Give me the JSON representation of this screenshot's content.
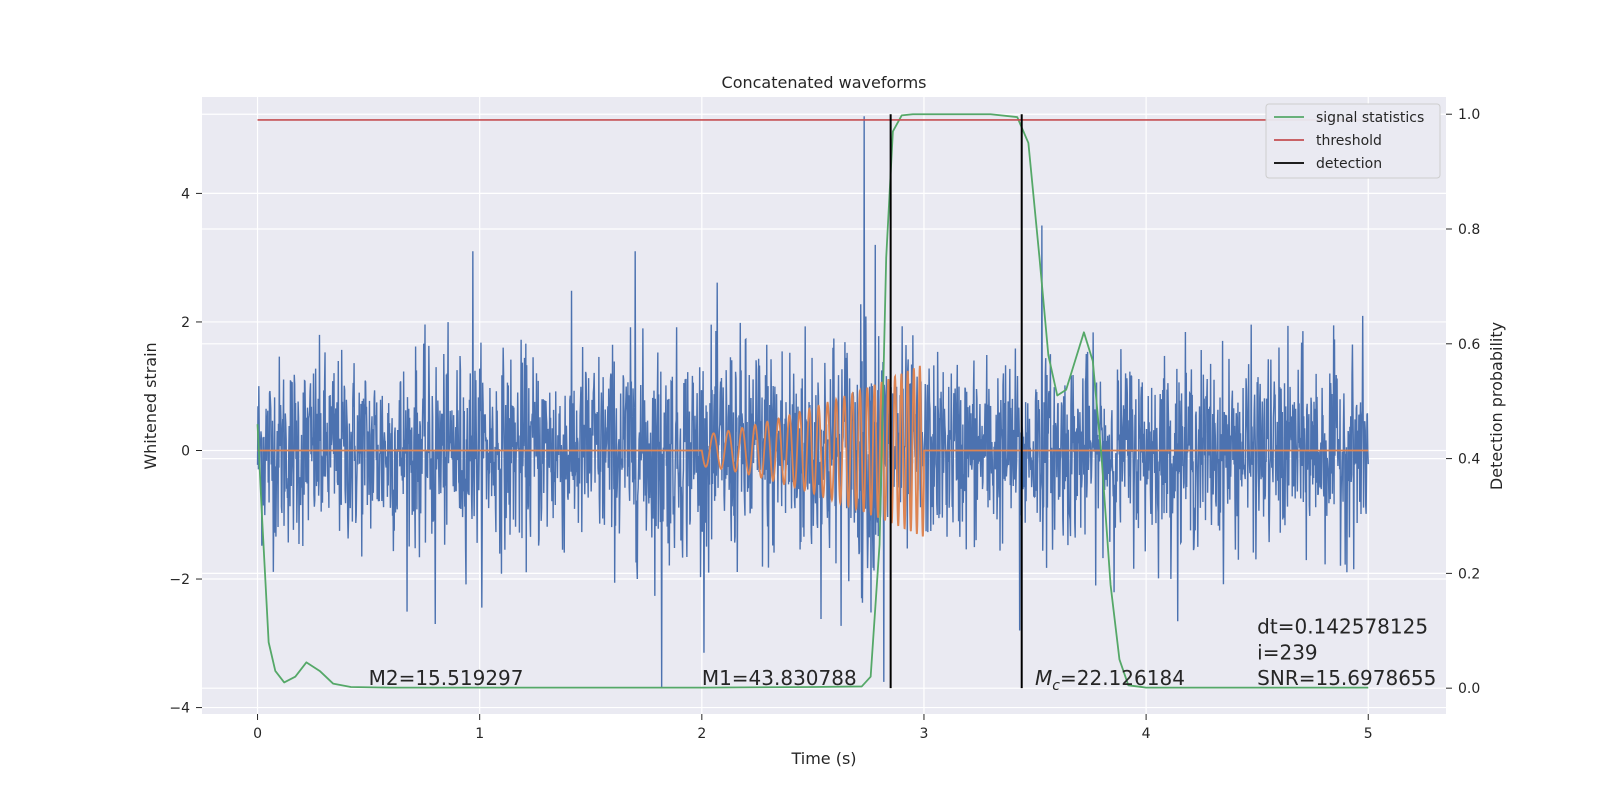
{
  "chart_data": {
    "type": "line",
    "title": "Concatenated waveforms",
    "xlabel": "Time (s)",
    "ylabel_left": "Whitened strain",
    "ylabel_right": "Detection probability",
    "xlim": [
      -0.25,
      5.35
    ],
    "ylim_left": [
      -4.1,
      5.5
    ],
    "ylim_right": [
      -0.045,
      1.03
    ],
    "xticks": [
      0,
      1,
      2,
      3,
      4,
      5
    ],
    "yticks_left": [
      -4,
      -2,
      0,
      2,
      4
    ],
    "yticks_left_labels": [
      "−4",
      "−2",
      "0",
      "2",
      "4"
    ],
    "yticks_right": [
      0.0,
      0.2,
      0.4,
      0.6,
      0.8,
      1.0
    ],
    "yticks_right_labels": [
      "0.0",
      "0.2",
      "0.4",
      "0.6",
      "0.8",
      "1.0"
    ],
    "grid": true,
    "legend_position": "top-right",
    "legend": [
      {
        "name": "signal statistics",
        "color": "#55a868"
      },
      {
        "name": "threshold",
        "color": "#c44e52"
      },
      {
        "name": "detection",
        "color": "#000000"
      }
    ],
    "colors": {
      "background": "#eaeaf2",
      "noise": "#4c72b0",
      "template": "#dd8452",
      "statistics": "#55a868",
      "threshold": "#c44e52",
      "detection": "#000000"
    },
    "series": [
      {
        "key": "noise",
        "axis": "left",
        "x_range": [
          0,
          5
        ],
        "amplitude_envelope": [
          [
            0,
            2.3
          ],
          [
            1,
            2.3
          ],
          [
            2,
            2.6
          ],
          [
            2.8,
            3.1
          ],
          [
            3.0,
            2.2
          ],
          [
            5,
            2.3
          ]
        ],
        "spikes": [
          [
            2.73,
            5.2
          ],
          [
            2.78,
            3.2
          ],
          [
            2.72,
            -2.3
          ],
          [
            1.82,
            -3.7
          ],
          [
            0.8,
            -2.7
          ],
          [
            2.82,
            -3.6
          ],
          [
            3.53,
            3.5
          ],
          [
            3.43,
            -2.8
          ],
          [
            0.97,
            3.1
          ],
          [
            1.7,
            3.1
          ]
        ]
      },
      {
        "key": "template",
        "axis": "left",
        "x": [
          0,
          2.0,
          3.0,
          5.0
        ],
        "chirp": {
          "start": 2.0,
          "end": 3.0,
          "amp_start": 0.25,
          "amp_end": 1.35,
          "freq_start": 14,
          "freq_end": 38
        }
      },
      {
        "name": "signal statistics",
        "axis": "right",
        "x": [
          0,
          0.02,
          0.05,
          0.08,
          0.12,
          0.17,
          0.22,
          0.28,
          0.34,
          0.42,
          0.6,
          1.0,
          1.5,
          2.0,
          2.5,
          2.72,
          2.76,
          2.8,
          2.83,
          2.86,
          2.9,
          2.95,
          3.1,
          3.3,
          3.42,
          3.47,
          3.52,
          3.56,
          3.6,
          3.64,
          3.68,
          3.72,
          3.76,
          3.8,
          3.84,
          3.88,
          3.92,
          4.0,
          4.5,
          5.0
        ],
        "y": [
          0.46,
          0.3,
          0.08,
          0.03,
          0.01,
          0.02,
          0.045,
          0.03,
          0.008,
          0.002,
          0.001,
          0.001,
          0.001,
          0.001,
          0.002,
          0.003,
          0.02,
          0.25,
          0.75,
          0.97,
          0.998,
          1.0,
          1.0,
          1.0,
          0.995,
          0.95,
          0.75,
          0.58,
          0.51,
          0.52,
          0.57,
          0.62,
          0.57,
          0.4,
          0.18,
          0.05,
          0.005,
          0.001,
          0.001,
          0.001
        ]
      },
      {
        "name": "threshold",
        "axis": "right",
        "x": [
          0,
          5
        ],
        "y": [
          0.99,
          0.99
        ]
      }
    ],
    "detections": [
      2.85,
      3.44
    ],
    "annotations": [
      {
        "text": "M2=15.519297",
        "x": 0.5,
        "y": -3.65
      },
      {
        "text": "M1=43.830788",
        "x": 2.0,
        "y": -3.65
      },
      {
        "text": "=22.126184",
        "prefix_italic": "M",
        "prefix_sub": "c",
        "x": 3.5,
        "y": -3.65
      },
      {
        "text": "dt=0.142578125",
        "x": 4.5,
        "y": -2.85
      },
      {
        "text": " i=239",
        "x": 4.5,
        "y": -3.25
      },
      {
        "text": "SNR=15.6978655",
        "x": 4.5,
        "y": -3.65
      }
    ]
  }
}
